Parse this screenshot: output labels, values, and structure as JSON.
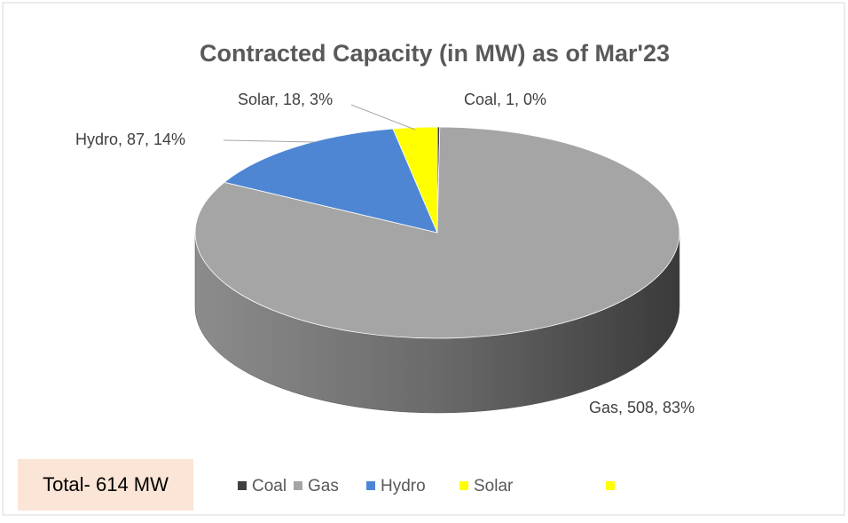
{
  "chart_data": {
    "type": "pie",
    "title": "Contracted Capacity (in MW) as of Mar'23",
    "categories": [
      "Coal",
      "Gas",
      "Hydro",
      "Solar"
    ],
    "values": [
      1,
      508,
      87,
      18
    ],
    "value_labels": [
      "Coal, 1, 0%",
      "Gas, 508, 83%",
      "Hydro, 87, 14%",
      "Solar, 18, 3%"
    ],
    "colors": [
      "#404040",
      "#a5a5a5",
      "#4e86d4",
      "#ffff00"
    ],
    "annotation": "Total- 614 MW",
    "legend": "bottom"
  }
}
